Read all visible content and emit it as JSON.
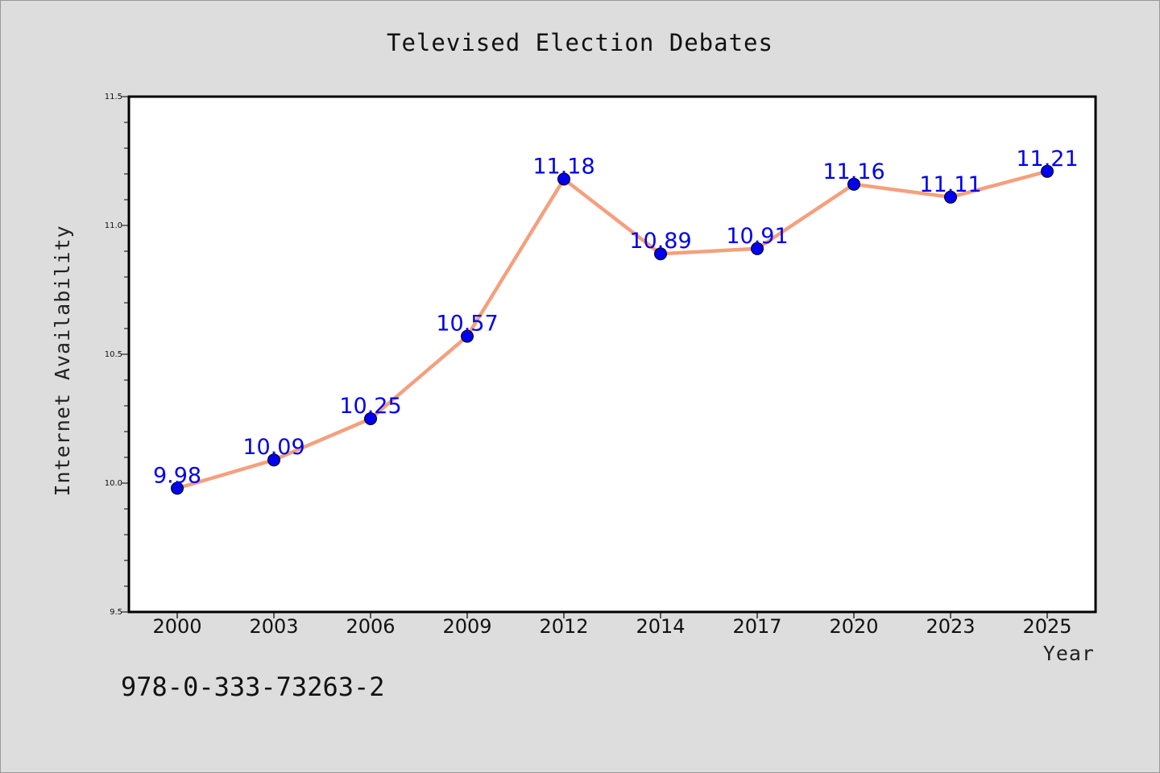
{
  "chart_data": {
    "type": "line",
    "title": "Televised Election Debates",
    "xlabel": "Year",
    "ylabel": "Internet Availability",
    "categories": [
      "2000",
      "2003",
      "2006",
      "2009",
      "2012",
      "2014",
      "2017",
      "2020",
      "2023",
      "2025"
    ],
    "series": [
      {
        "values": [
          9.98,
          10.09,
          10.25,
          10.57,
          11.18,
          10.89,
          10.91,
          11.16,
          11.11,
          11.21
        ],
        "line_color": "#f4a07e",
        "marker_color": "#0000ee",
        "label_color": "#0000ee"
      }
    ],
    "data_labels": [
      "9.98",
      "10.09",
      "10.25",
      "10.57",
      "11.18",
      "10.89",
      "10.91",
      "11.16",
      "11.11",
      "11.21"
    ],
    "ylim": [
      9.5,
      11.5
    ],
    "yticks": [
      "9.5",
      "10.0",
      "10.5",
      "11.0",
      "11.5"
    ],
    "ytick_values": [
      9.5,
      10.0,
      10.5,
      11.0,
      11.5
    ],
    "y_minor_step": 0.1,
    "grid": false,
    "legend": "none",
    "background_color": "#dddddd",
    "plot_background_color": "#ffffff"
  },
  "footer": {
    "isbn": "978-0-333-73263-2"
  }
}
